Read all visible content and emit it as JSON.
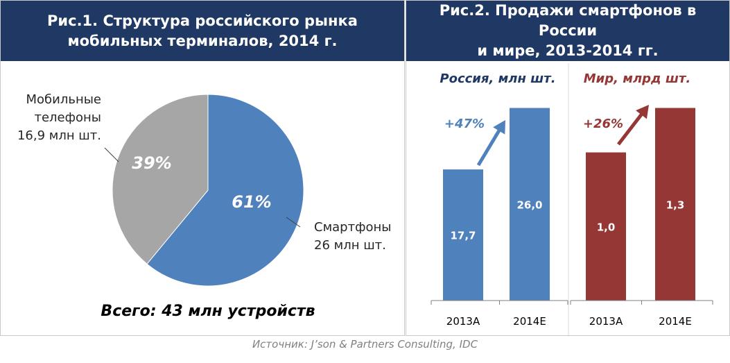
{
  "fig1": {
    "title": "Рис.1. Структура российского рынка\nмобильных терминалов, 2014 г.",
    "total_label": "Всего: 43 млн устройств"
  },
  "fig2": {
    "title": "Рис.2. Продажи смартфонов в России\nи мире, 2013-2014 гг."
  },
  "source": "Источник: J’son & Partners Consulting, IDC",
  "chart_data": [
    {
      "type": "pie",
      "title": "Рис.1. Структура российского рынка мобильных терминалов, 2014 г.",
      "slices": [
        {
          "label_lines": [
            "Смартфоны",
            "26 млн шт."
          ],
          "value": 61,
          "pct_label": "61%",
          "color": "#4f81bd"
        },
        {
          "label_lines": [
            "Мобильные",
            "телефоны",
            "16,9 млн шт."
          ],
          "value": 39,
          "pct_label": "39%",
          "color": "#a6a6a6"
        }
      ],
      "total": "Всего: 43 млн устройств"
    },
    {
      "type": "bar",
      "title": "Россия, млн шт.",
      "categories": [
        "2013A",
        "2014E"
      ],
      "values": [
        17.7,
        26.0
      ],
      "value_labels": [
        "17,7",
        "26,0"
      ],
      "growth": "+47%",
      "color": "#4f81bd",
      "ylim": [
        0,
        26.8
      ]
    },
    {
      "type": "bar",
      "title": "Мир, млрд шт.",
      "categories": [
        "2013A",
        "2014E"
      ],
      "values": [
        1.0,
        1.3
      ],
      "value_labels": [
        "1,0",
        "1,3"
      ],
      "growth": "+26%",
      "color": "#953735",
      "ylim": [
        0,
        1.34
      ]
    }
  ]
}
